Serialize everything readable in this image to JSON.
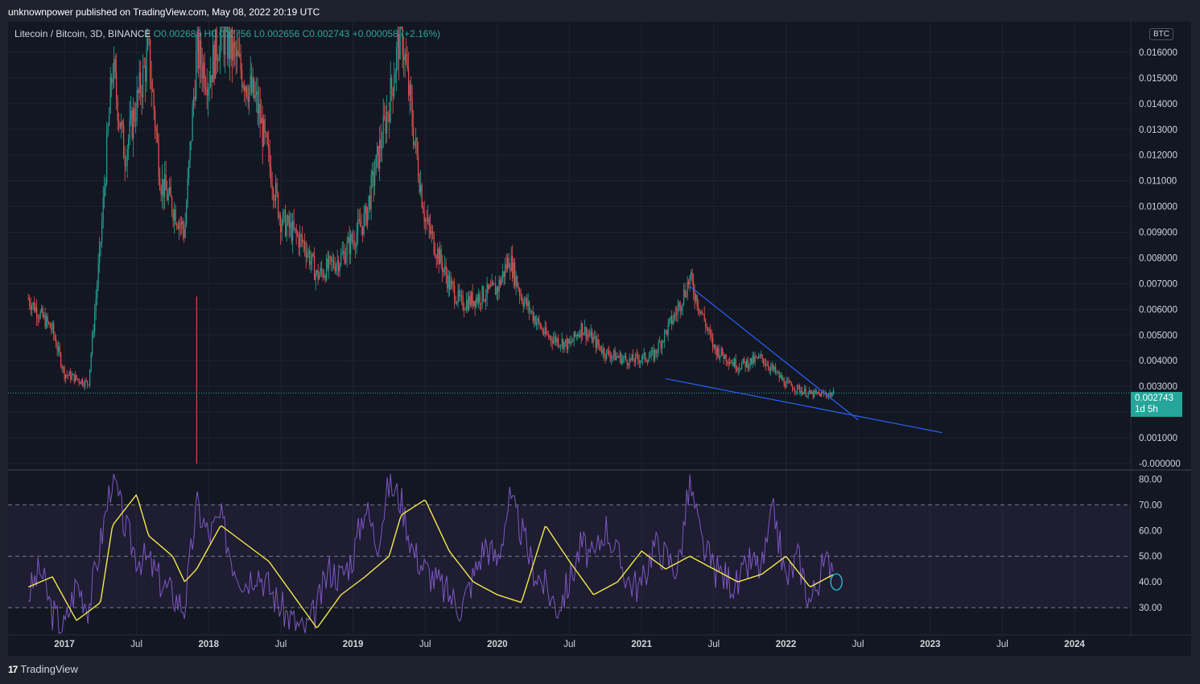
{
  "header": {
    "published": "unknownpower published on TradingView.com, May 08, 2022 20:19 UTC"
  },
  "legend": {
    "symbol": "Litecoin / Bitcoin, 3D, BINANCE",
    "o": "O0.002685",
    "h": "H0.002756",
    "l": "L0.002656",
    "c": "C0.002743",
    "change": "+0.000058 (+2.16%)"
  },
  "currency_badge": "BTC",
  "last_price": {
    "value": "0.002743",
    "countdown": "1d 5h"
  },
  "footer": {
    "brand": "TradingView"
  },
  "colors": {
    "background": "#131722",
    "up": "#26a69a",
    "down": "#ef5350",
    "rsi": "#7e57c2",
    "rsi_ma": "#f5e94a",
    "trendline": "#2962ff"
  },
  "chart_data": [
    {
      "type": "candlestick",
      "ylim": [
        0,
        0.017
      ],
      "y_ticks": [
        "0.016000",
        "0.015000",
        "0.014000",
        "0.013000",
        "0.012000",
        "0.011000",
        "0.010000",
        "0.009000",
        "0.008000",
        "0.007000",
        "0.006000",
        "0.005000",
        "0.004000",
        "0.003000",
        "0.002000",
        "0.001000",
        "-0.000000"
      ],
      "x_ticks": [
        "2017",
        "Jul",
        "2018",
        "Jul",
        "2019",
        "Jul",
        "2020",
        "Jul",
        "2021",
        "Jul",
        "2022",
        "Jul",
        "2023",
        "Jul",
        "2024"
      ],
      "price_series": {
        "dates": [
          "2016-10",
          "2016-12",
          "2017-01",
          "2017-03",
          "2017-04",
          "2017-05",
          "2017-06",
          "2017-08",
          "2017-09",
          "2017-11",
          "2017-12",
          "2018-01",
          "2018-02",
          "2018-03",
          "2018-05",
          "2018-07",
          "2018-09",
          "2018-10",
          "2018-12",
          "2019-02",
          "2019-04",
          "2019-05",
          "2019-06",
          "2019-07",
          "2019-09",
          "2019-10",
          "2020-01",
          "2020-02",
          "2020-03",
          "2020-05",
          "2020-07",
          "2020-08",
          "2020-10",
          "2020-12",
          "2021-02",
          "2021-04",
          "2021-05",
          "2021-07",
          "2021-09",
          "2021-11",
          "2022-01",
          "2022-03",
          "2022-05"
        ],
        "values": [
          0.0064,
          0.0052,
          0.0035,
          0.0031,
          0.0085,
          0.0155,
          0.012,
          0.016,
          0.011,
          0.009,
          0.016,
          0.015,
          0.0168,
          0.016,
          0.014,
          0.0095,
          0.0085,
          0.0073,
          0.008,
          0.0095,
          0.014,
          0.017,
          0.013,
          0.0095,
          0.007,
          0.0062,
          0.0068,
          0.008,
          0.0065,
          0.005,
          0.0046,
          0.0053,
          0.0043,
          0.004,
          0.0042,
          0.006,
          0.0072,
          0.0045,
          0.0038,
          0.0041,
          0.0031,
          0.0027,
          0.0027
        ]
      },
      "trendlines": [
        {
          "from": [
            "2021-05",
            0.0069
          ],
          "to": [
            "2022-07",
            0.0017
          ]
        },
        {
          "from": [
            "2021-03",
            0.0033
          ],
          "to": [
            "2023-02",
            0.0012
          ]
        }
      ],
      "last_price": 0.002743
    },
    {
      "type": "line",
      "name": "RSI",
      "ylim": [
        20,
        82
      ],
      "y_ticks": [
        "80.00",
        "70.00",
        "60.00",
        "50.00",
        "40.00",
        "30.00"
      ],
      "bands": [
        30,
        50,
        70
      ],
      "rsi": {
        "dates": [
          "2016-10",
          "2016-11",
          "2016-12",
          "2017-01",
          "2017-02",
          "2017-03",
          "2017-04",
          "2017-05",
          "2017-06",
          "2017-07",
          "2017-08",
          "2017-09",
          "2017-10",
          "2017-11",
          "2017-12",
          "2018-01",
          "2018-02",
          "2018-03",
          "2018-04",
          "2018-05",
          "2018-06",
          "2018-07",
          "2018-08",
          "2018-09",
          "2018-10",
          "2018-11",
          "2018-12",
          "2019-01",
          "2019-02",
          "2019-03",
          "2019-04",
          "2019-05",
          "2019-06",
          "2019-07",
          "2019-08",
          "2019-09",
          "2019-10",
          "2019-11",
          "2019-12",
          "2020-01",
          "2020-02",
          "2020-03",
          "2020-04",
          "2020-05",
          "2020-06",
          "2020-07",
          "2020-08",
          "2020-09",
          "2020-10",
          "2020-11",
          "2020-12",
          "2021-01",
          "2021-02",
          "2021-03",
          "2021-04",
          "2021-05",
          "2021-06",
          "2021-07",
          "2021-08",
          "2021-09",
          "2021-10",
          "2021-11",
          "2021-12",
          "2022-01",
          "2022-02",
          "2022-03",
          "2022-04",
          "2022-05"
        ],
        "values": [
          35,
          45,
          28,
          22,
          40,
          30,
          55,
          82,
          62,
          50,
          48,
          40,
          35,
          30,
          70,
          58,
          65,
          48,
          40,
          45,
          38,
          30,
          25,
          20,
          30,
          45,
          42,
          50,
          70,
          55,
          78,
          72,
          52,
          45,
          40,
          35,
          30,
          42,
          55,
          48,
          72,
          60,
          45,
          38,
          30,
          40,
          55,
          48,
          62,
          50,
          40,
          38,
          55,
          50,
          45,
          78,
          55,
          45,
          42,
          38,
          48,
          45,
          68,
          40,
          50,
          32,
          45,
          50
        ]
      },
      "rsi_ma": {
        "dates": [
          "2016-10",
          "2016-12",
          "2017-02",
          "2017-04",
          "2017-05",
          "2017-07",
          "2017-08",
          "2017-10",
          "2017-11",
          "2017-12",
          "2018-02",
          "2018-04",
          "2018-06",
          "2018-08",
          "2018-10",
          "2018-12",
          "2019-02",
          "2019-04",
          "2019-05",
          "2019-07",
          "2019-09",
          "2019-11",
          "2020-01",
          "2020-03",
          "2020-05",
          "2020-07",
          "2020-09",
          "2020-11",
          "2021-01",
          "2021-03",
          "2021-05",
          "2021-07",
          "2021-09",
          "2021-11",
          "2022-01",
          "2022-03",
          "2022-05"
        ],
        "values": [
          38,
          42,
          25,
          32,
          62,
          74,
          58,
          50,
          40,
          45,
          62,
          55,
          48,
          35,
          22,
          35,
          42,
          50,
          66,
          72,
          52,
          40,
          35,
          32,
          62,
          48,
          35,
          40,
          52,
          45,
          50,
          45,
          40,
          43,
          50,
          38,
          43
        ]
      }
    }
  ]
}
